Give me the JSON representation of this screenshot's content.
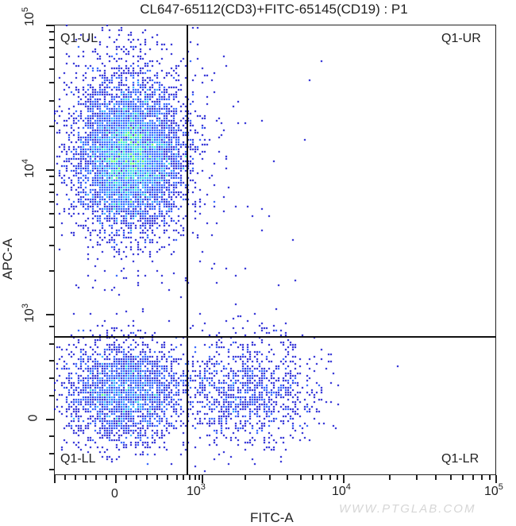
{
  "chart_data": {
    "type": "scatter",
    "subtype": "flow-cytometry-density-dot-plot",
    "title": "CL647-65112(CD3)+FITC-65145(CD19) : P1",
    "xlabel": "FITC-A",
    "ylabel": "APC-A",
    "x_scale": "biexponential",
    "y_scale": "biexponential",
    "x_ticks": [
      "0",
      "10^3",
      "10^4",
      "10^5"
    ],
    "y_ticks": [
      "0",
      "10^3",
      "10^4",
      "10^5"
    ],
    "xlim": [
      "<0",
      "10^5"
    ],
    "ylim": [
      "<0",
      "10^5"
    ],
    "grid": false,
    "quadrant_gate": {
      "name": "Q1",
      "x_threshold_approx": 800,
      "y_threshold_approx": 700
    },
    "quadrants": [
      {
        "label": "Q1-UL",
        "position": "upper-left",
        "description": "CD3+ CD19- (T cells), dense cluster centered near FITC~200, APC~1.2e4"
      },
      {
        "label": "Q1-UR",
        "position": "upper-right",
        "description": "near-empty"
      },
      {
        "label": "Q1-LL",
        "position": "lower-left",
        "description": "double negative cluster centered near FITC~200, APC~0"
      },
      {
        "label": "Q1-LR",
        "position": "lower-right",
        "description": "CD19+ (B cells) cluster centered near FITC~2000, APC~0"
      }
    ],
    "populations": [
      {
        "name": "CD3+ T cells",
        "quadrant": "Q1-UL",
        "center_x": 200,
        "center_y": 12000,
        "relative_density": "high"
      },
      {
        "name": "Double negative",
        "quadrant": "Q1-LL",
        "center_x": 200,
        "center_y": 0,
        "relative_density": "medium"
      },
      {
        "name": "CD19+ B cells",
        "quadrant": "Q1-LR",
        "center_x": 2000,
        "center_y": 0,
        "relative_density": "low-medium"
      }
    ],
    "color_map": [
      "#0000cc",
      "#0040ff",
      "#00a0ff",
      "#00e0c0",
      "#40ff40"
    ]
  },
  "labels": {
    "title": "CL647-65112(CD3)+FITC-65145(CD19) : P1",
    "x_axis": "FITC-A",
    "y_axis": "APC-A",
    "q_ul": "Q1-UL",
    "q_ur": "Q1-UR",
    "q_ll": "Q1-LL",
    "q_lr": "Q1-LR",
    "watermark": "WWW.PTGLAB.COM"
  },
  "ticks": {
    "x": [
      {
        "base": "0",
        "exp": ""
      },
      {
        "base": "10",
        "exp": "3"
      },
      {
        "base": "10",
        "exp": "4"
      },
      {
        "base": "10",
        "exp": "5"
      }
    ],
    "y": [
      {
        "base": "10",
        "exp": "5"
      },
      {
        "base": "10",
        "exp": "4"
      },
      {
        "base": "10",
        "exp": "3"
      },
      {
        "base": "0",
        "exp": ""
      }
    ]
  }
}
